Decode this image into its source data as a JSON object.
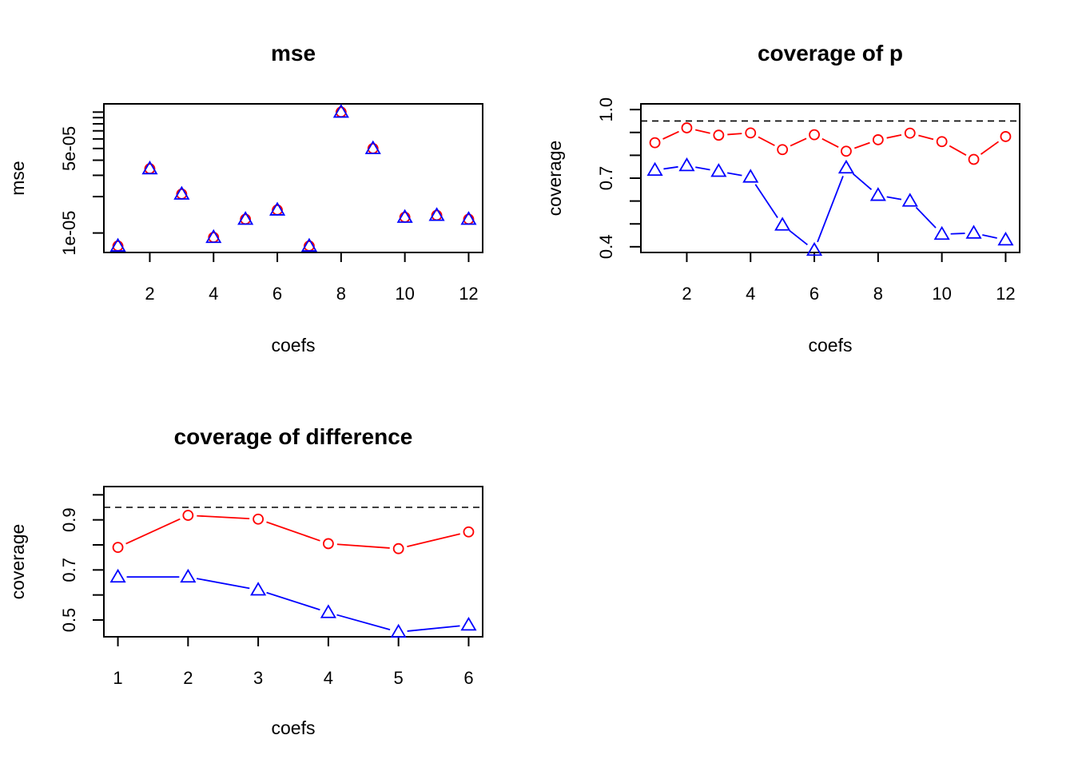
{
  "chart_data": [
    {
      "type": "scatter",
      "title": "mse",
      "xlabel": "coefs",
      "ylabel": "mse",
      "log_y": true,
      "xlim": [
        0.56,
        12.44
      ],
      "ylim": [
        6.9e-06,
        0.000117
      ],
      "xticks": [
        2,
        4,
        6,
        8,
        10,
        12
      ],
      "xtick_labels": [
        "2",
        "4",
        "6",
        "8",
        "10",
        "12"
      ],
      "yticks": [
        1e-05,
        5e-05
      ],
      "ytick_labels": [
        "1e-05",
        "5e-05"
      ],
      "yticks_minor": [
        2e-05,
        3e-05,
        4e-05,
        6e-05,
        7e-05,
        8e-05,
        9e-05,
        0.0001
      ],
      "x": [
        1,
        2,
        3,
        4,
        5,
        6,
        7,
        8,
        9,
        10,
        11,
        12
      ],
      "series": [
        {
          "color": "#ff0000",
          "marker": "circle",
          "connected": false,
          "values": [
            7.8e-06,
            3.4e-05,
            2.1e-05,
            9.2e-06,
            1.3e-05,
            1.55e-05,
            7.8e-06,
            0.0001,
            5e-05,
            1.35e-05,
            1.4e-05,
            1.3e-05
          ]
        },
        {
          "color": "#0000ff",
          "marker": "triangle",
          "connected": false,
          "values": [
            7.8e-06,
            3.4e-05,
            2.1e-05,
            9.2e-06,
            1.3e-05,
            1.55e-05,
            7.8e-06,
            0.0001,
            5e-05,
            1.35e-05,
            1.4e-05,
            1.3e-05
          ]
        }
      ]
    },
    {
      "type": "line",
      "title": "coverage of p",
      "xlabel": "coefs",
      "ylabel": "coverage",
      "xlim": [
        0.56,
        12.44
      ],
      "ylim": [
        0.375,
        1.025
      ],
      "xticks": [
        2,
        4,
        6,
        8,
        10,
        12
      ],
      "xtick_labels": [
        "2",
        "4",
        "6",
        "8",
        "10",
        "12"
      ],
      "yticks": [
        0.4,
        0.5,
        0.6,
        0.7,
        0.8,
        0.9,
        1.0
      ],
      "ytick_labels": [
        "0.4",
        "",
        "",
        "0.7",
        "",
        "",
        "1.0"
      ],
      "hline": 0.95,
      "x": [
        1,
        2,
        3,
        4,
        5,
        6,
        7,
        8,
        9,
        10,
        11,
        12
      ],
      "series": [
        {
          "color": "#ff0000",
          "marker": "circle",
          "connected": true,
          "values": [
            0.855,
            0.92,
            0.888,
            0.898,
            0.825,
            0.89,
            0.818,
            0.868,
            0.897,
            0.86,
            0.782,
            0.882
          ]
        },
        {
          "color": "#0000ff",
          "marker": "triangle",
          "connected": true,
          "values": [
            0.735,
            0.755,
            0.73,
            0.705,
            0.495,
            0.385,
            0.745,
            0.625,
            0.6,
            0.455,
            0.46,
            0.43
          ]
        }
      ]
    },
    {
      "type": "line",
      "title": "coverage of difference",
      "xlabel": "coefs",
      "ylabel": "coverage",
      "xlim": [
        0.8,
        6.2
      ],
      "ylim": [
        0.433,
        1.033
      ],
      "xticks": [
        1,
        2,
        3,
        4,
        5,
        6
      ],
      "xtick_labels": [
        "1",
        "2",
        "3",
        "4",
        "5",
        "6"
      ],
      "yticks": [
        0.5,
        0.6,
        0.7,
        0.8,
        0.9,
        1.0
      ],
      "ytick_labels": [
        "0.5",
        "",
        "0.7",
        "",
        "0.9",
        ""
      ],
      "hline": 0.95,
      "x": [
        1,
        2,
        3,
        4,
        5,
        6
      ],
      "series": [
        {
          "color": "#ff0000",
          "marker": "circle",
          "connected": true,
          "values": [
            0.79,
            0.918,
            0.903,
            0.805,
            0.785,
            0.852
          ]
        },
        {
          "color": "#0000ff",
          "marker": "triangle",
          "connected": true,
          "values": [
            0.672,
            0.672,
            0.62,
            0.53,
            0.452,
            0.48
          ]
        }
      ]
    }
  ]
}
